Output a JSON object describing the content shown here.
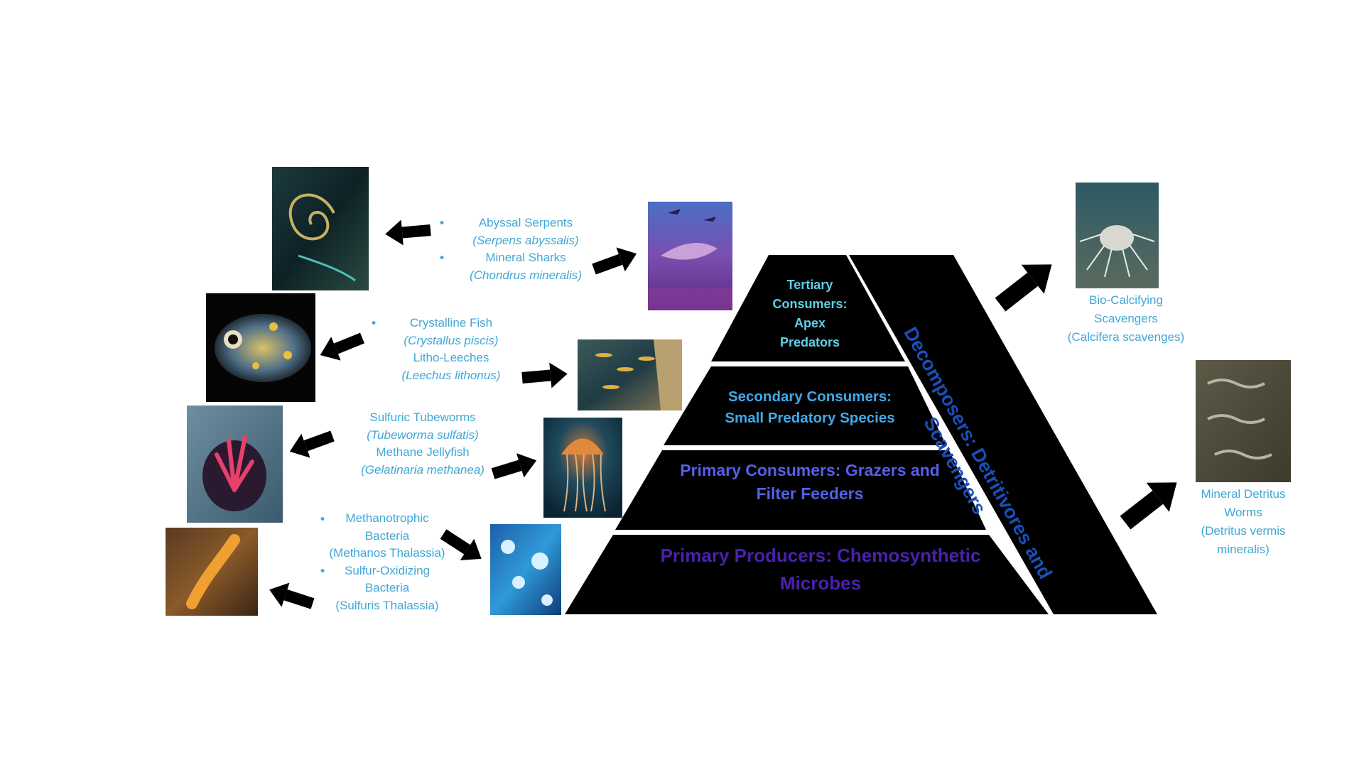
{
  "pyramid": {
    "tertiary": "Tertiary Consumers: Apex Predators",
    "secondary": "Secondary Consumers: Small Predatory Species",
    "primary_consumers": "Primary Consumers: Grazers and Filter Feeders",
    "producers": "Primary Producers: Chemosynthetic Microbes",
    "decomposers": "Decomposers: Detritivores and Scavengers"
  },
  "labels": {
    "tertiary": {
      "a_name": "Abyssal Serpents",
      "a_sci": "(Serpens abyssalis)",
      "b_name": "Mineral Sharks",
      "b_sci": "(Chondrus mineralis)"
    },
    "secondary": {
      "a_name": "Crystalline Fish",
      "a_sci": "(Crystallus piscis)",
      "b_name": "Litho-Leeches",
      "b_sci": "(Leechus lithonus)"
    },
    "primary_consumers": {
      "a_name": "Sulfuric Tubeworms",
      "a_sci": "(Tubeworma sulfatis)",
      "b_name": "Methane Jellyfish",
      "b_sci": "(Gelatinaria methanea)"
    },
    "producers": {
      "a_line1": "Methanotrophic",
      "a_line2": "Bacteria",
      "a_line3": "(Methanos Thalassia)",
      "b_line1": "Sulfur-Oxidizing",
      "b_line2": "Bacteria",
      "b_line3": "(Sulfuris Thalassia)"
    },
    "decomposers": {
      "a_line1": "Bio-Calcifying",
      "a_line2": "Scavengers",
      "a_line3": "(Calcifera scavenges)",
      "b_line1": "Mineral Detritus",
      "b_line2": "Worms",
      "b_line3": "(Detritus vermis",
      "b_line4": "mineralis)"
    }
  },
  "colors": {
    "background": "#ffffff",
    "pyramid_fill": "#000000",
    "label_blue": "#3fa7d6",
    "tertiary_text": "#5fd0e6",
    "secondary_text": "#42a8e8",
    "primary_consumers_text": "#5560e6",
    "producers_text": "#4a20b0",
    "decomposers_text": "#1a4fb8",
    "arrow": "#000000"
  }
}
